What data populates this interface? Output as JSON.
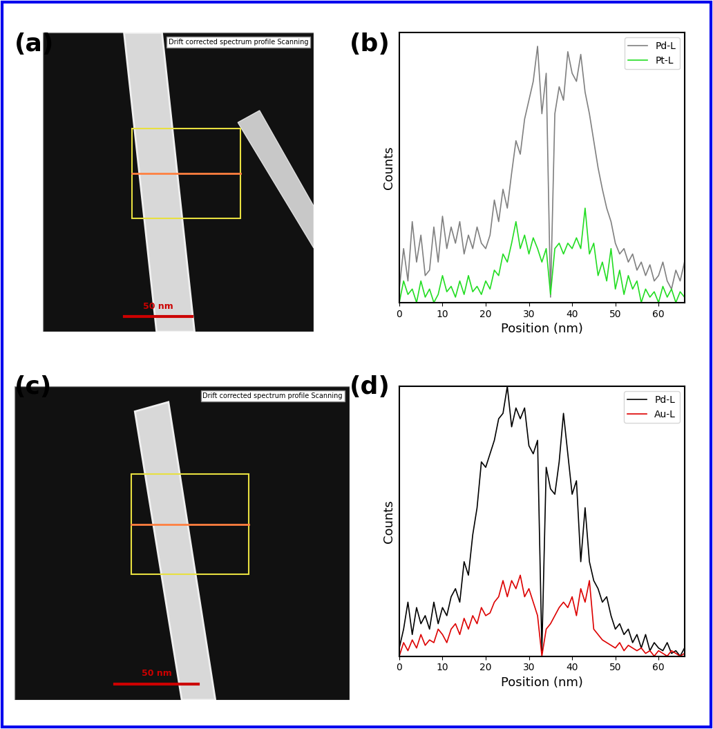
{
  "chart_data": [
    {
      "type": "image",
      "panel": "(a)",
      "caption": "Drift corrected spectrum profile Scanning",
      "scale_bar": "50 nm"
    },
    {
      "type": "line",
      "panel": "(b)",
      "xlabel": "Position (nm)",
      "ylabel": "Counts",
      "x": [
        0,
        1,
        2,
        3,
        4,
        5,
        6,
        7,
        8,
        9,
        10,
        11,
        12,
        13,
        14,
        15,
        16,
        17,
        18,
        19,
        20,
        21,
        22,
        23,
        24,
        25,
        26,
        27,
        28,
        29,
        30,
        31,
        32,
        33,
        34,
        35,
        36,
        37,
        38,
        39,
        40,
        41,
        42,
        43,
        44,
        45,
        46,
        47,
        48,
        49,
        50,
        51,
        52,
        53,
        54,
        55,
        56,
        57,
        58,
        59,
        60,
        61,
        62,
        63,
        64,
        65,
        66
      ],
      "series": [
        {
          "name": "Pd-L",
          "color": "#808080",
          "values": [
            5,
            20,
            8,
            30,
            15,
            25,
            10,
            12,
            28,
            15,
            32,
            20,
            28,
            22,
            30,
            18,
            25,
            20,
            28,
            22,
            20,
            25,
            38,
            30,
            42,
            35,
            48,
            60,
            55,
            68,
            75,
            82,
            95,
            70,
            85,
            2,
            70,
            80,
            75,
            93,
            85,
            82,
            92,
            78,
            70,
            60,
            50,
            42,
            35,
            30,
            22,
            18,
            20,
            15,
            18,
            12,
            15,
            10,
            14,
            8,
            10,
            15,
            8,
            5,
            12,
            8,
            15
          ]
        },
        {
          "name": "Pt-L",
          "color": "#22dd22",
          "values": [
            0,
            8,
            3,
            5,
            0,
            8,
            2,
            5,
            0,
            3,
            10,
            4,
            6,
            2,
            8,
            3,
            10,
            4,
            6,
            3,
            8,
            5,
            12,
            10,
            18,
            15,
            22,
            30,
            20,
            25,
            18,
            24,
            20,
            15,
            20,
            3,
            20,
            22,
            18,
            22,
            20,
            24,
            20,
            35,
            18,
            22,
            10,
            15,
            8,
            20,
            5,
            12,
            3,
            10,
            5,
            8,
            0,
            5,
            2,
            4,
            0,
            6,
            2,
            5,
            0,
            4,
            2
          ]
        }
      ],
      "xlim": [
        0,
        66
      ],
      "xticks": [
        0,
        10,
        20,
        30,
        40,
        50,
        60
      ],
      "ylim": [
        0,
        100
      ],
      "tick_labels": "x",
      "legend": "upper right"
    },
    {
      "type": "image",
      "panel": "(c)",
      "caption": "Drift corrected spectrum profile Scanning",
      "scale_bar": "50 nm"
    },
    {
      "type": "line",
      "panel": "(d)",
      "xlabel": "Position (nm)",
      "ylabel": "Counts",
      "x": [
        0,
        1,
        2,
        3,
        4,
        5,
        6,
        7,
        8,
        9,
        10,
        11,
        12,
        13,
        14,
        15,
        16,
        17,
        18,
        19,
        20,
        21,
        22,
        23,
        24,
        25,
        26,
        27,
        28,
        29,
        30,
        31,
        32,
        33,
        34,
        35,
        36,
        37,
        38,
        39,
        40,
        41,
        42,
        43,
        44,
        45,
        46,
        47,
        48,
        49,
        50,
        51,
        52,
        53,
        54,
        55,
        56,
        57,
        58,
        59,
        60,
        61,
        62,
        63,
        64,
        65,
        66
      ],
      "series": [
        {
          "name": "Pd-L",
          "color": "#000000",
          "values": [
            3,
            10,
            20,
            8,
            18,
            12,
            15,
            10,
            20,
            12,
            18,
            15,
            22,
            25,
            20,
            35,
            30,
            45,
            55,
            72,
            70,
            75,
            80,
            88,
            90,
            100,
            85,
            92,
            88,
            92,
            78,
            75,
            80,
            2,
            70,
            62,
            60,
            72,
            90,
            75,
            60,
            65,
            35,
            55,
            35,
            28,
            25,
            20,
            22,
            15,
            10,
            12,
            8,
            10,
            5,
            8,
            3,
            8,
            2,
            5,
            3,
            2,
            5,
            1,
            2,
            0,
            3
          ]
        },
        {
          "name": "Au-L",
          "color": "#dd0000",
          "values": [
            0,
            5,
            2,
            6,
            3,
            8,
            4,
            6,
            5,
            10,
            8,
            5,
            10,
            12,
            8,
            14,
            10,
            15,
            12,
            18,
            15,
            16,
            20,
            22,
            28,
            22,
            28,
            25,
            30,
            22,
            25,
            20,
            15,
            0,
            10,
            12,
            15,
            18,
            20,
            18,
            22,
            15,
            25,
            20,
            28,
            10,
            8,
            6,
            5,
            4,
            3,
            5,
            2,
            4,
            3,
            2,
            3,
            1,
            2,
            0,
            2,
            1,
            0,
            2,
            1,
            0,
            1
          ]
        }
      ],
      "xlim": [
        0,
        66
      ],
      "xticks": [
        0,
        10,
        20,
        30,
        40,
        50,
        60
      ],
      "ylim": [
        0,
        100
      ],
      "tick_labels": "x",
      "legend": "upper right"
    }
  ]
}
